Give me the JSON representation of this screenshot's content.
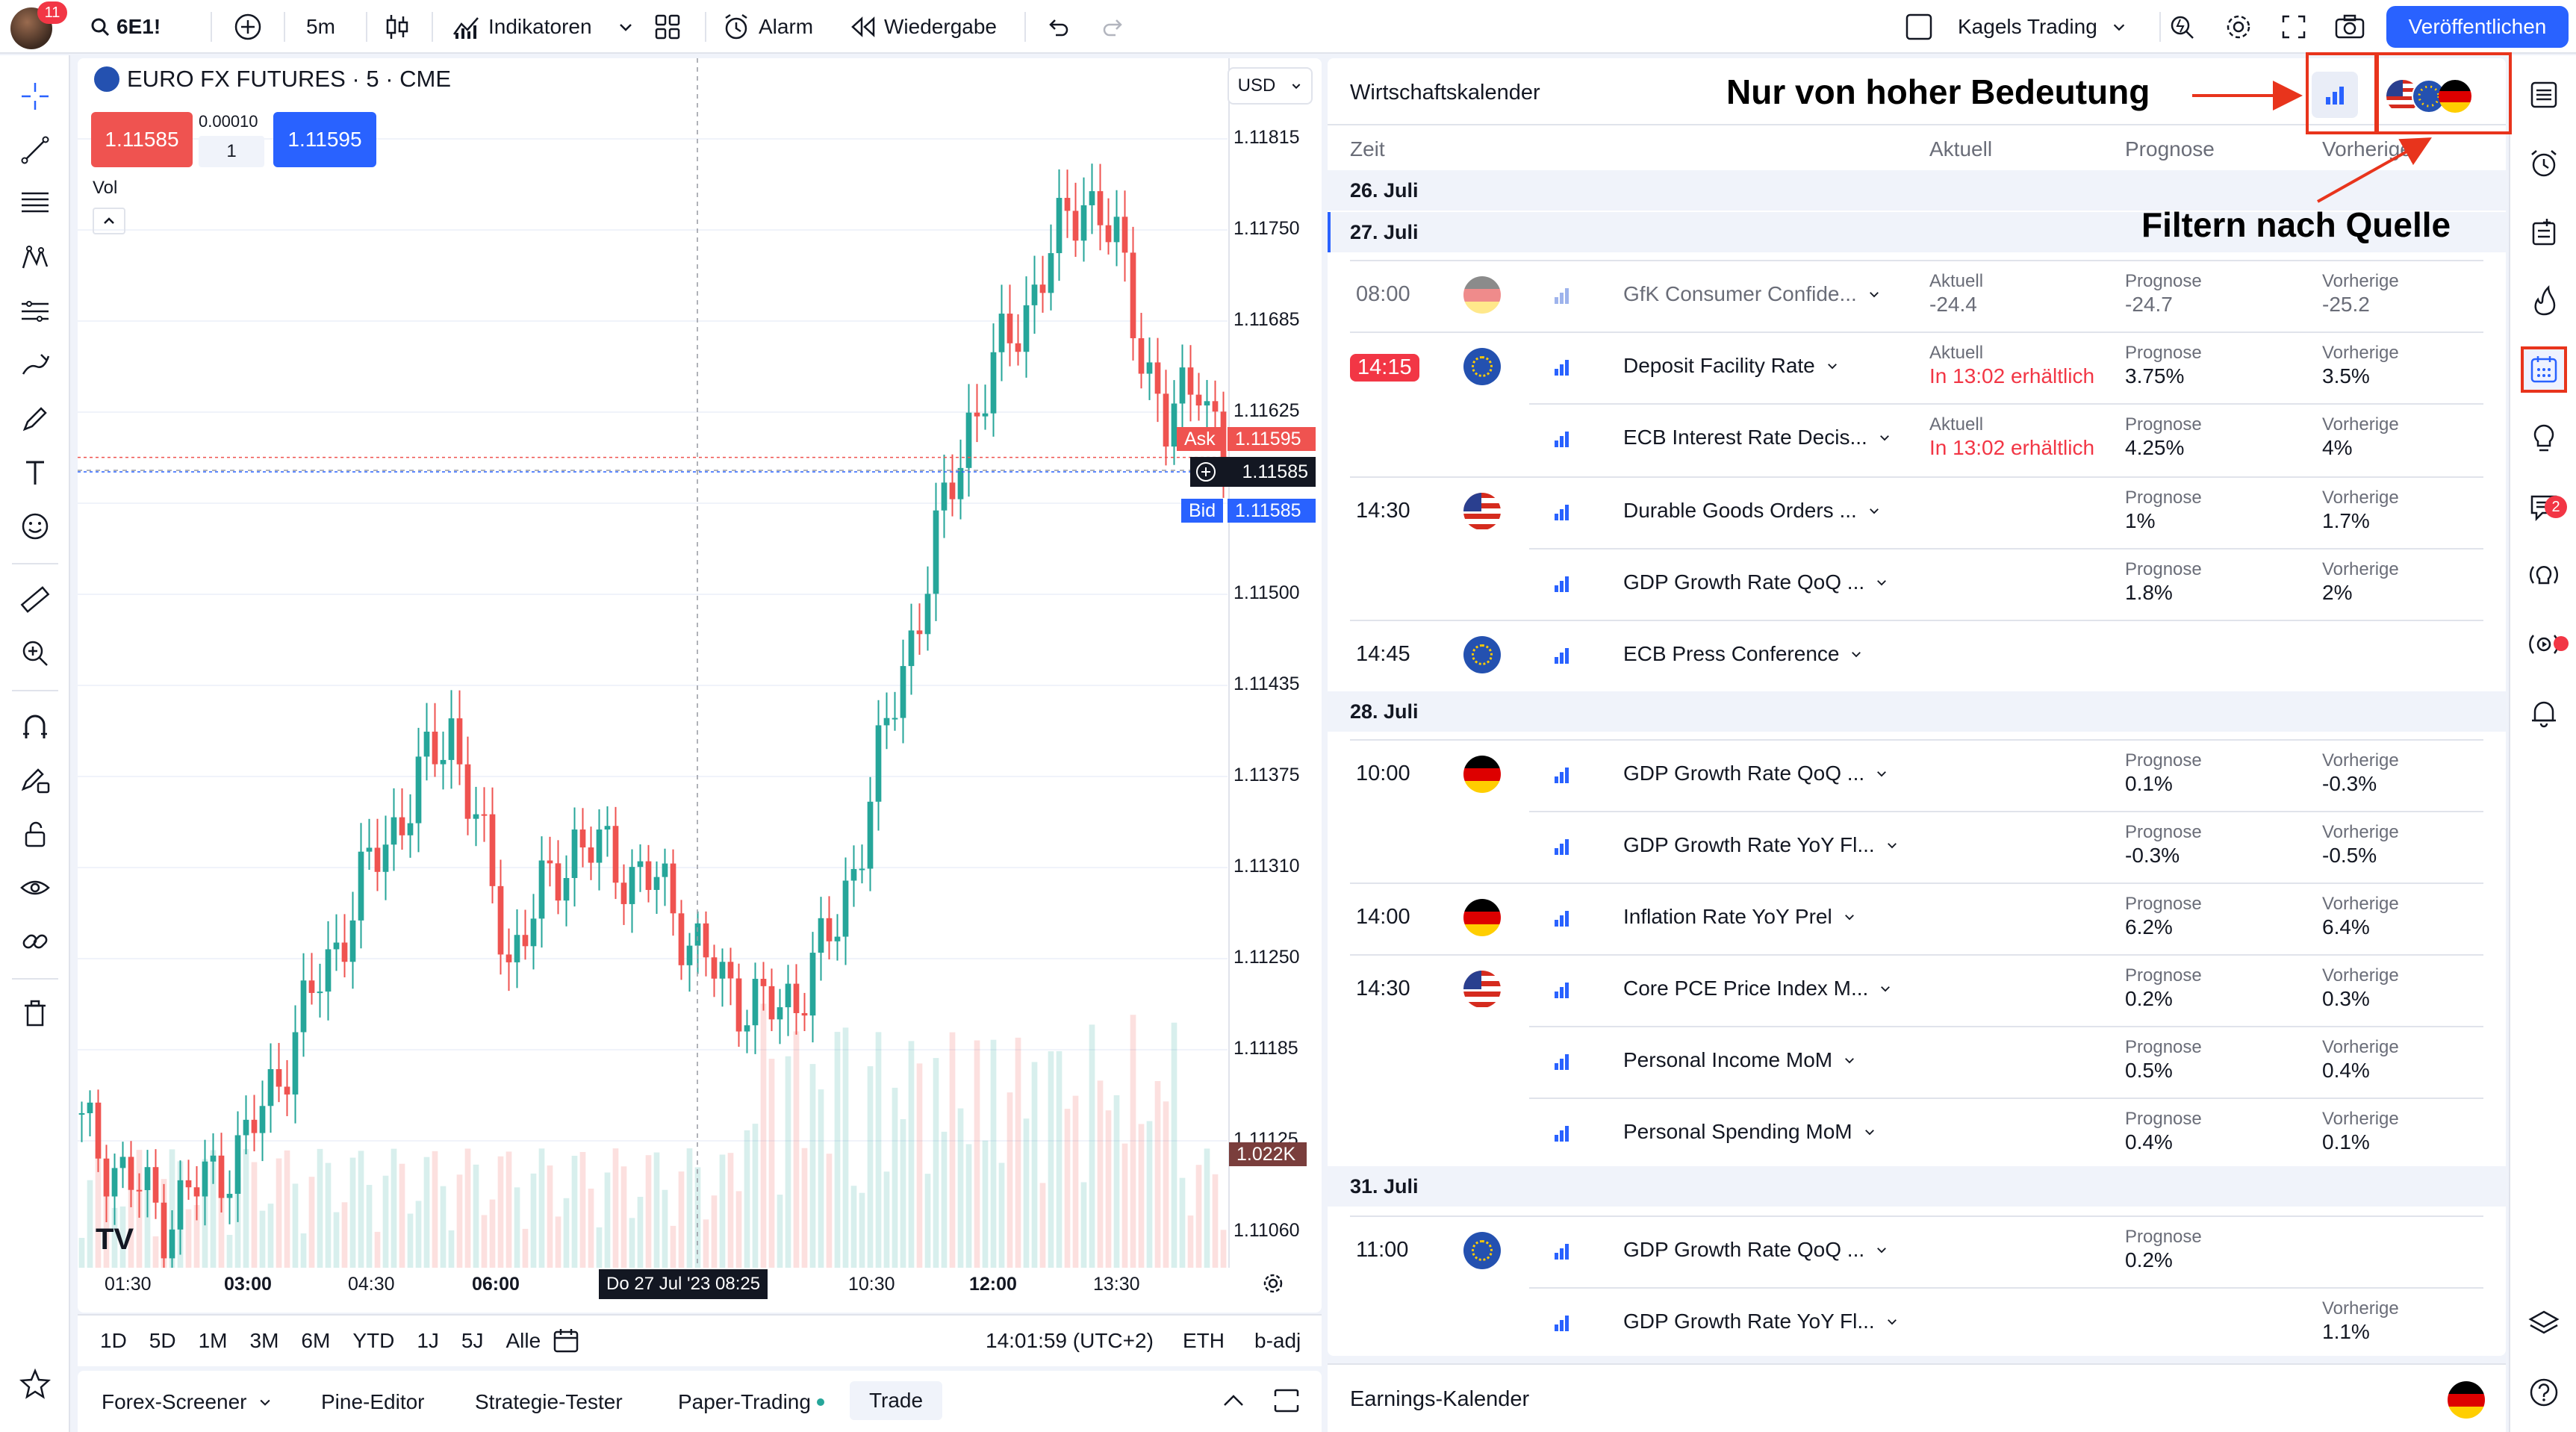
{
  "topbar": {
    "notifications": "11",
    "symbol": "6E1!",
    "interval": "5m",
    "indicators": "Indikatoren",
    "alert": "Alarm",
    "replay": "Wiedergabe",
    "layout_name": "Kagels Trading",
    "publish": "Veröffentlichen"
  },
  "chart": {
    "title": "EURO FX FUTURES · 5 · CME",
    "sell_price": "1.11585",
    "spread": "0.00010",
    "quantity": "1",
    "buy_price": "1.11595",
    "volume_label": "Vol",
    "currency": "USD",
    "y_ticks": [
      "1.11815",
      "1.11750",
      "1.11685",
      "1.11625",
      "1.11500",
      "1.11435",
      "1.11375",
      "1.11310",
      "1.11250",
      "1.11185",
      "1.11125",
      "1.11060"
    ],
    "ask_label": "Ask",
    "ask_price": "1.11595",
    "last_price": "1.11585",
    "bid_label": "Bid",
    "bid_price": "1.11585",
    "volume_tag": "1.022K",
    "x_ticks": [
      "01:30",
      "03:00",
      "04:30",
      "06:00",
      "10:30",
      "12:00",
      "13:30"
    ],
    "crosshair_time": "Do 27 Jul '23   08:25",
    "ranges": [
      "1D",
      "5D",
      "1M",
      "3M",
      "6M",
      "YTD",
      "1J",
      "5J",
      "Alle"
    ],
    "clock": "14:01:59 (UTC+2)",
    "session": "ETH",
    "adjust": "b-adj",
    "colors": {
      "up": "#26a69a",
      "down": "#ef5350",
      "ask": "#ef5350",
      "bid": "#2962ff"
    }
  },
  "bottom_tabs": [
    "Forex-Screener",
    "Pine-Editor",
    "Strategie-Tester",
    "Paper-Trading",
    "Trade"
  ],
  "calendar": {
    "title": "Wirtschaftskalender",
    "headers": {
      "time": "Zeit",
      "actual": "Aktuell",
      "forecast": "Prognose",
      "previous": "Vorherige"
    },
    "labels": {
      "actual": "Aktuell",
      "forecast": "Prognose",
      "previous": "Vorherige"
    },
    "earnings_title": "Earnings-Kalender",
    "dates": {
      "d26": "26. Juli",
      "d27": "27. Juli",
      "d28": "28. Juli",
      "d31": "31. Juli"
    },
    "events": [
      {
        "time": "08:00",
        "flag": "de",
        "name": "GfK Consumer Confide...",
        "actual": "-24.4",
        "forecast": "-24.7",
        "previous": "-25.2",
        "past": true
      },
      {
        "time": "14:15",
        "flag": "eu",
        "name": "Deposit Facility Rate",
        "actual": "In 13:02 erhältlich",
        "forecast": "3.75%",
        "previous": "3.5%"
      },
      {
        "time": "",
        "flag": "",
        "name": "ECB Interest Rate Decis...",
        "actual": "In 13:02 erhältlich",
        "forecast": "4.25%",
        "previous": "4%"
      },
      {
        "time": "14:30",
        "flag": "us",
        "name": "Durable Goods Orders ...",
        "forecast": "1%",
        "previous": "1.7%"
      },
      {
        "time": "",
        "flag": "",
        "name": "GDP Growth Rate QoQ ...",
        "forecast": "1.8%",
        "previous": "2%"
      },
      {
        "time": "14:45",
        "flag": "eu",
        "name": "ECB Press Conference"
      },
      {
        "time": "10:00",
        "flag": "de",
        "name": "GDP Growth Rate QoQ ...",
        "forecast": "0.1%",
        "previous": "-0.3%"
      },
      {
        "time": "",
        "flag": "",
        "name": "GDP Growth Rate YoY Fl...",
        "forecast": "-0.3%",
        "previous": "-0.5%"
      },
      {
        "time": "14:00",
        "flag": "de",
        "name": "Inflation Rate YoY Prel",
        "forecast": "6.2%",
        "previous": "6.4%"
      },
      {
        "time": "14:30",
        "flag": "us",
        "name": "Core PCE Price Index M...",
        "forecast": "0.2%",
        "previous": "0.3%"
      },
      {
        "time": "",
        "flag": "",
        "name": "Personal Income MoM",
        "forecast": "0.5%",
        "previous": "0.4%"
      },
      {
        "time": "",
        "flag": "",
        "name": "Personal Spending MoM",
        "forecast": "0.4%",
        "previous": "0.1%"
      },
      {
        "time": "11:00",
        "flag": "eu",
        "name": "GDP Growth Rate QoQ ...",
        "forecast": "0.2%"
      },
      {
        "time": "",
        "flag": "",
        "name": "GDP Growth Rate YoY Fl...",
        "previous": "1.1%"
      }
    ]
  },
  "right_sidebar": {
    "chat_badge": "2"
  },
  "annotations": {
    "high_importance": "Nur von hoher Bedeutung",
    "filter_source": "Filtern nach Quelle"
  }
}
